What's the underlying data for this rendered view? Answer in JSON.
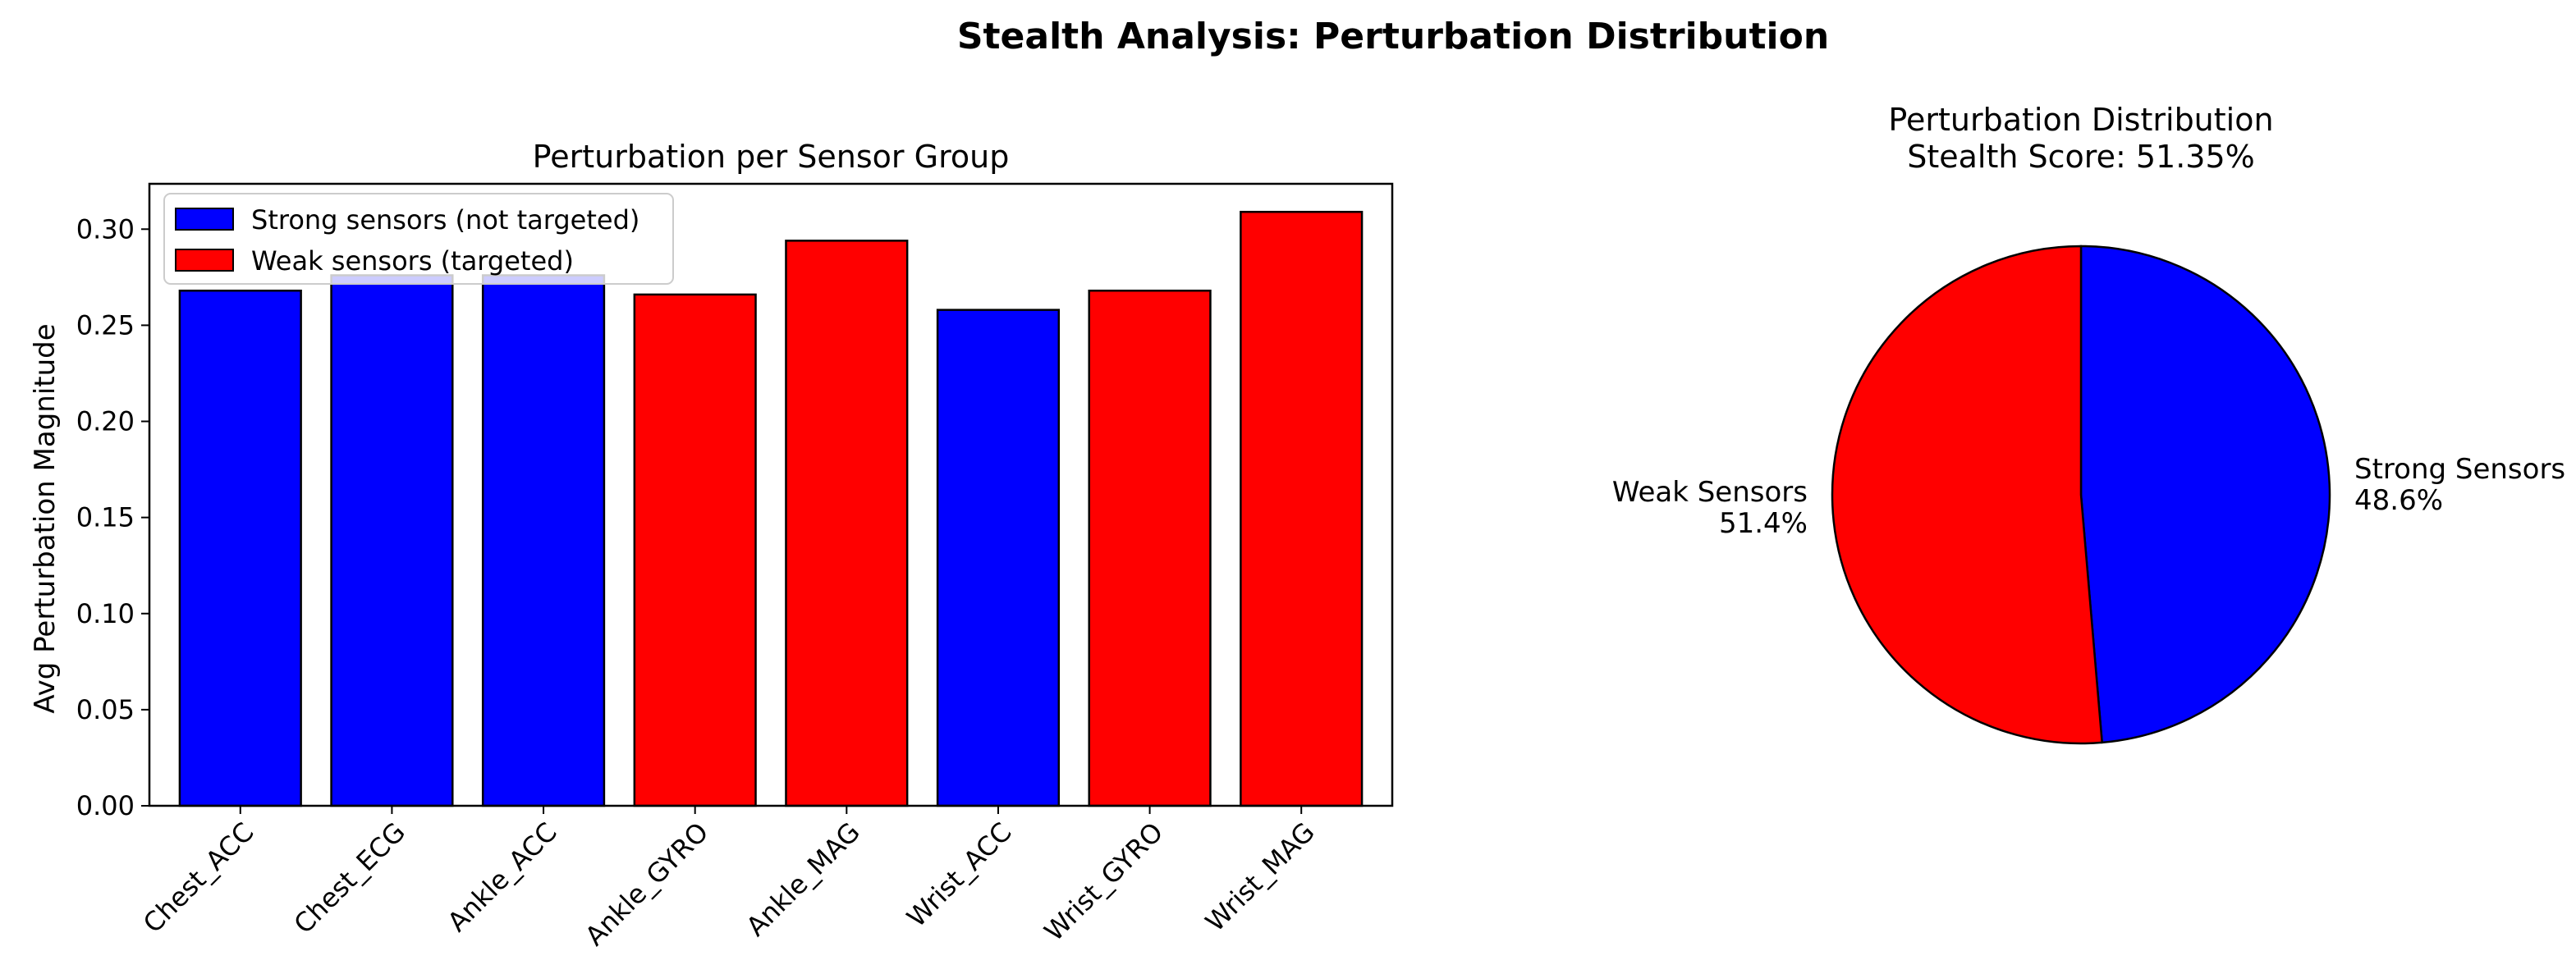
{
  "figure": {
    "suptitle": "Stealth Analysis: Perturbation Distribution"
  },
  "chart_data": [
    {
      "type": "bar",
      "title": "Perturbation per Sensor Group",
      "xlabel": "",
      "ylabel": "Avg Perturbation Magnitude",
      "categories": [
        "Chest_ACC",
        "Chest_ECG",
        "Ankle_ACC",
        "Ankle_GYRO",
        "Ankle_MAG",
        "Wrist_ACC",
        "Wrist_GYRO",
        "Wrist_MAG"
      ],
      "values": [
        0.268,
        0.276,
        0.276,
        0.266,
        0.294,
        0.258,
        0.268,
        0.309
      ],
      "groups": [
        "strong",
        "strong",
        "strong",
        "weak",
        "weak",
        "strong",
        "weak",
        "weak"
      ],
      "ylim": [
        0,
        0.3236
      ],
      "yticks": [
        "0.00",
        "0.05",
        "0.10",
        "0.15",
        "0.20",
        "0.25",
        "0.30"
      ],
      "ytick_values": [
        0,
        0.05,
        0.1,
        0.15,
        0.2,
        0.25,
        0.3
      ],
      "legend": {
        "placement": "top-left",
        "entries": [
          {
            "label": "Strong sensors (not targeted)",
            "color": "#0000ff"
          },
          {
            "label": "Weak sensors (targeted)",
            "color": "#ff0000"
          }
        ]
      },
      "colors": {
        "strong": "#0000ff",
        "weak": "#ff0000"
      },
      "grid": false
    },
    {
      "type": "pie",
      "title": "Perturbation Distribution",
      "subtitle": "Stealth Score: 51.35%",
      "slices": [
        {
          "label": "Strong Sensors",
          "value": 48.65,
          "display": "48.6%",
          "color": "#0000ff"
        },
        {
          "label": "Weak Sensors",
          "value": 51.35,
          "display": "51.4%",
          "color": "#ff0000"
        }
      ],
      "startangle": 90
    }
  ]
}
